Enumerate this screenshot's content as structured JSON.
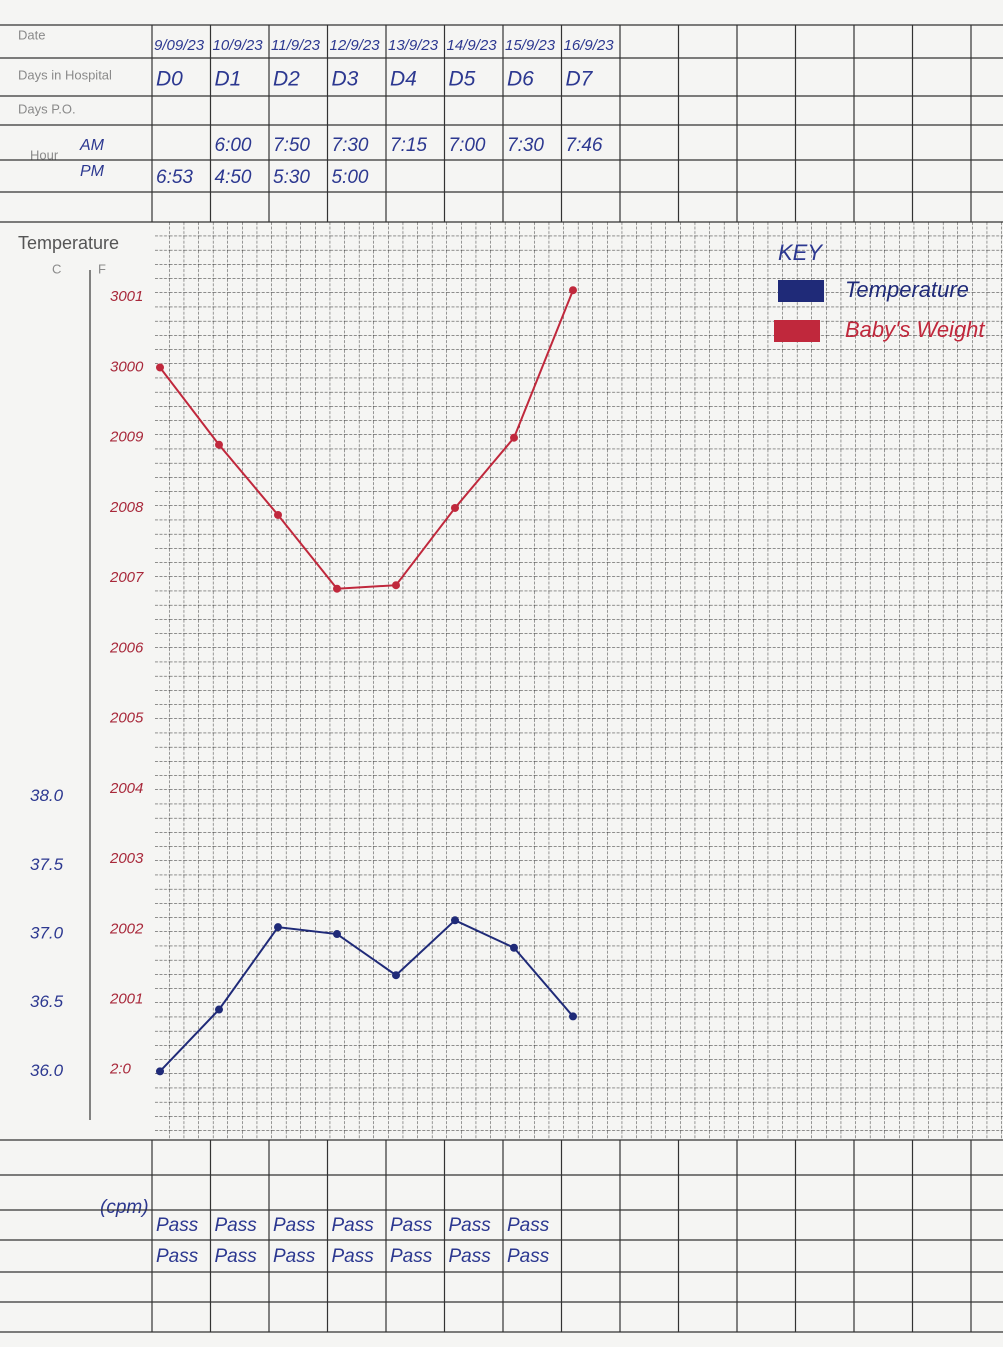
{
  "row_labels": {
    "date": "Date",
    "days": "Days in Hospital",
    "days_po": "Days P.O.",
    "hour": "Hour",
    "am": "AM",
    "pm": "PM",
    "resp": "(cpm)"
  },
  "chart_data": {
    "type": "line",
    "y_label": "Temperature",
    "y_unit": "C",
    "y2_unit": "F",
    "key_title": "KEY",
    "categories": [
      "9/09/23",
      "10/9/23",
      "11/9/23",
      "12/9/23",
      "13/9/23",
      "14/9/23",
      "15/9/23",
      "16/9/23"
    ],
    "days": [
      "D0",
      "D1",
      "D2",
      "D3",
      "D4",
      "D5",
      "D6",
      "D7"
    ],
    "am": [
      null,
      "6:00",
      "7:50",
      "7:30",
      "7:15",
      "7:00",
      "7:30",
      "7:46"
    ],
    "pm": [
      "6:53",
      "4:50",
      "5:30",
      "5:00",
      null,
      null,
      null,
      null
    ],
    "checks_1": [
      "Pass",
      "Pass",
      "Pass",
      "Pass",
      "Pass",
      "Pass",
      "Pass",
      null
    ],
    "checks_2": [
      "Pass",
      "Pass",
      "Pass",
      "Pass",
      "Pass",
      "Pass",
      "Pass",
      null
    ],
    "series": [
      {
        "name": "Temperature",
        "color": "#1f2a78",
        "axis": "y",
        "values": [
          36.0,
          36.45,
          37.05,
          37.0,
          36.7,
          37.1,
          36.9,
          36.4
        ]
      },
      {
        "name": "Baby's Weight",
        "color": "#c0283c",
        "axis": "y2",
        "values": [
          2010,
          2008.9,
          2007.9,
          2006.85,
          2006.9,
          2008,
          2009,
          2011.1
        ]
      }
    ],
    "ylim": [
      35.5,
      42.2
    ],
    "yticks": [
      {
        "value": 36,
        "label": "36.0"
      },
      {
        "value": 36.5,
        "label": "36.5"
      },
      {
        "value": 37,
        "label": "37.0"
      },
      {
        "value": 37.5,
        "label": "37.5"
      },
      {
        "value": 38,
        "label": "38.0"
      }
    ],
    "y2lim": [
      1999,
      2012.1
    ],
    "y2ticks": [
      {
        "value": 2000,
        "label": "2:0"
      },
      2001,
      2002,
      2003,
      2004,
      2005,
      2006,
      2007,
      2008,
      2009,
      {
        "value": 2010,
        "label": "3000"
      },
      {
        "value": 2011,
        "label": "3001"
      }
    ]
  }
}
